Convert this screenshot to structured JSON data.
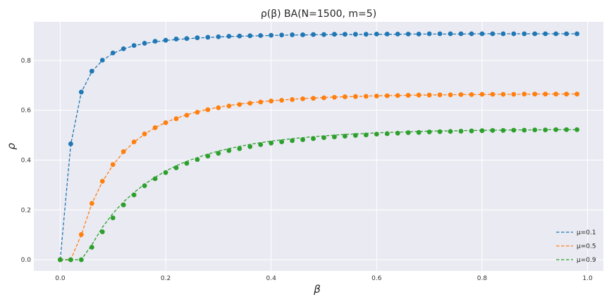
{
  "chart_data": {
    "type": "line",
    "title": "ρ(β) BA(N=1500, m=5)",
    "xlabel": "β",
    "ylabel": "ρ",
    "xlim": [
      -0.05,
      1.03
    ],
    "ylim": [
      -0.045,
      0.955
    ],
    "xticks": [
      0.0,
      0.2,
      0.4,
      0.6,
      0.8,
      1.0
    ],
    "xtick_labels": [
      "0.0",
      "0.2",
      "0.4",
      "0.6",
      "0.8",
      "1.0"
    ],
    "yticks": [
      0.0,
      0.2,
      0.4,
      0.6,
      0.8
    ],
    "ytick_labels": [
      "0.0",
      "0.2",
      "0.4",
      "0.6",
      "0.8"
    ],
    "grid": true,
    "legend_position": "bottom-right",
    "x": [
      0.0,
      0.02,
      0.04,
      0.06,
      0.08,
      0.1,
      0.12,
      0.14,
      0.16,
      0.18,
      0.2,
      0.22,
      0.24,
      0.26,
      0.28,
      0.3,
      0.32,
      0.34,
      0.36,
      0.38,
      0.4,
      0.42,
      0.44,
      0.46,
      0.48,
      0.5,
      0.52,
      0.54,
      0.56,
      0.58,
      0.6,
      0.62,
      0.64,
      0.66,
      0.68,
      0.7,
      0.72,
      0.74,
      0.76,
      0.78,
      0.8,
      0.82,
      0.84,
      0.86,
      0.88,
      0.9,
      0.92,
      0.94,
      0.96,
      0.98
    ],
    "series": [
      {
        "name": "μ=0.1",
        "color": "#1f77b4",
        "line": [
          0.0,
          0.462,
          0.672,
          0.755,
          0.8,
          0.828,
          0.846,
          0.859,
          0.868,
          0.875,
          0.88,
          0.884,
          0.887,
          0.89,
          0.892,
          0.894,
          0.896,
          0.897,
          0.898,
          0.899,
          0.9,
          0.901,
          0.902,
          0.902,
          0.903,
          0.903,
          0.904,
          0.904,
          0.904,
          0.905,
          0.905,
          0.905,
          0.905,
          0.906,
          0.906,
          0.906,
          0.906,
          0.906,
          0.906,
          0.907,
          0.907,
          0.907,
          0.907,
          0.907,
          0.907,
          0.907,
          0.907,
          0.907,
          0.907,
          0.907
        ],
        "markers": [
          0.0,
          0.465,
          0.673,
          0.757,
          0.801,
          0.83,
          0.847,
          0.86,
          0.869,
          0.877,
          0.881,
          0.886,
          0.888,
          0.891,
          0.893,
          0.895,
          0.897,
          0.898,
          0.899,
          0.9,
          0.901,
          0.902,
          0.903,
          0.903,
          0.904,
          0.904,
          0.905,
          0.905,
          0.905,
          0.905,
          0.906,
          0.906,
          0.906,
          0.906,
          0.906,
          0.907,
          0.907,
          0.907,
          0.907,
          0.907,
          0.907,
          0.907,
          0.907,
          0.907,
          0.907,
          0.907,
          0.907,
          0.907,
          0.907,
          0.907
        ]
      },
      {
        "name": "μ=0.5",
        "color": "#ff7f0e",
        "line": [
          0.0,
          0.0,
          0.1,
          0.225,
          0.313,
          0.38,
          0.432,
          0.472,
          0.504,
          0.53,
          0.551,
          0.568,
          0.582,
          0.594,
          0.604,
          0.612,
          0.619,
          0.625,
          0.63,
          0.634,
          0.638,
          0.641,
          0.644,
          0.647,
          0.649,
          0.651,
          0.653,
          0.654,
          0.655,
          0.657,
          0.658,
          0.659,
          0.659,
          0.66,
          0.661,
          0.661,
          0.662,
          0.662,
          0.663,
          0.663,
          0.663,
          0.664,
          0.664,
          0.664,
          0.664,
          0.665,
          0.665,
          0.665,
          0.665,
          0.665
        ],
        "markers": [
          0.0,
          0.0,
          0.101,
          0.226,
          0.315,
          0.382,
          0.434,
          0.473,
          0.505,
          0.53,
          0.55,
          0.566,
          0.58,
          0.592,
          0.602,
          0.61,
          0.617,
          0.623,
          0.628,
          0.633,
          0.637,
          0.64,
          0.643,
          0.646,
          0.648,
          0.65,
          0.652,
          0.654,
          0.655,
          0.656,
          0.657,
          0.658,
          0.659,
          0.66,
          0.661,
          0.661,
          0.662,
          0.662,
          0.663,
          0.663,
          0.664,
          0.664,
          0.664,
          0.664,
          0.665,
          0.665,
          0.665,
          0.665,
          0.665,
          0.665
        ]
      },
      {
        "name": "μ=0.9",
        "color": "#2ca02c",
        "line": [
          0.0,
          0.0,
          0.0,
          0.06,
          0.13,
          0.186,
          0.232,
          0.27,
          0.303,
          0.331,
          0.356,
          0.377,
          0.395,
          0.41,
          0.424,
          0.436,
          0.446,
          0.455,
          0.463,
          0.47,
          0.476,
          0.481,
          0.486,
          0.49,
          0.494,
          0.497,
          0.5,
          0.503,
          0.505,
          0.507,
          0.509,
          0.511,
          0.512,
          0.513,
          0.515,
          0.516,
          0.517,
          0.517,
          0.518,
          0.519,
          0.519,
          0.52,
          0.52,
          0.521,
          0.521,
          0.521,
          0.522,
          0.522,
          0.522,
          0.522
        ],
        "markers": [
          0.0,
          0.0,
          0.0,
          0.05,
          0.112,
          0.168,
          0.22,
          0.26,
          0.297,
          0.325,
          0.35,
          0.369,
          0.387,
          0.402,
          0.416,
          0.427,
          0.438,
          0.446,
          0.454,
          0.462,
          0.468,
          0.473,
          0.478,
          0.482,
          0.486,
          0.49,
          0.493,
          0.496,
          0.499,
          0.501,
          0.504,
          0.506,
          0.508,
          0.51,
          0.511,
          0.513,
          0.514,
          0.515,
          0.516,
          0.517,
          0.518,
          0.519,
          0.519,
          0.52,
          0.52,
          0.521,
          0.521,
          0.522,
          0.522,
          0.522
        ]
      }
    ]
  }
}
